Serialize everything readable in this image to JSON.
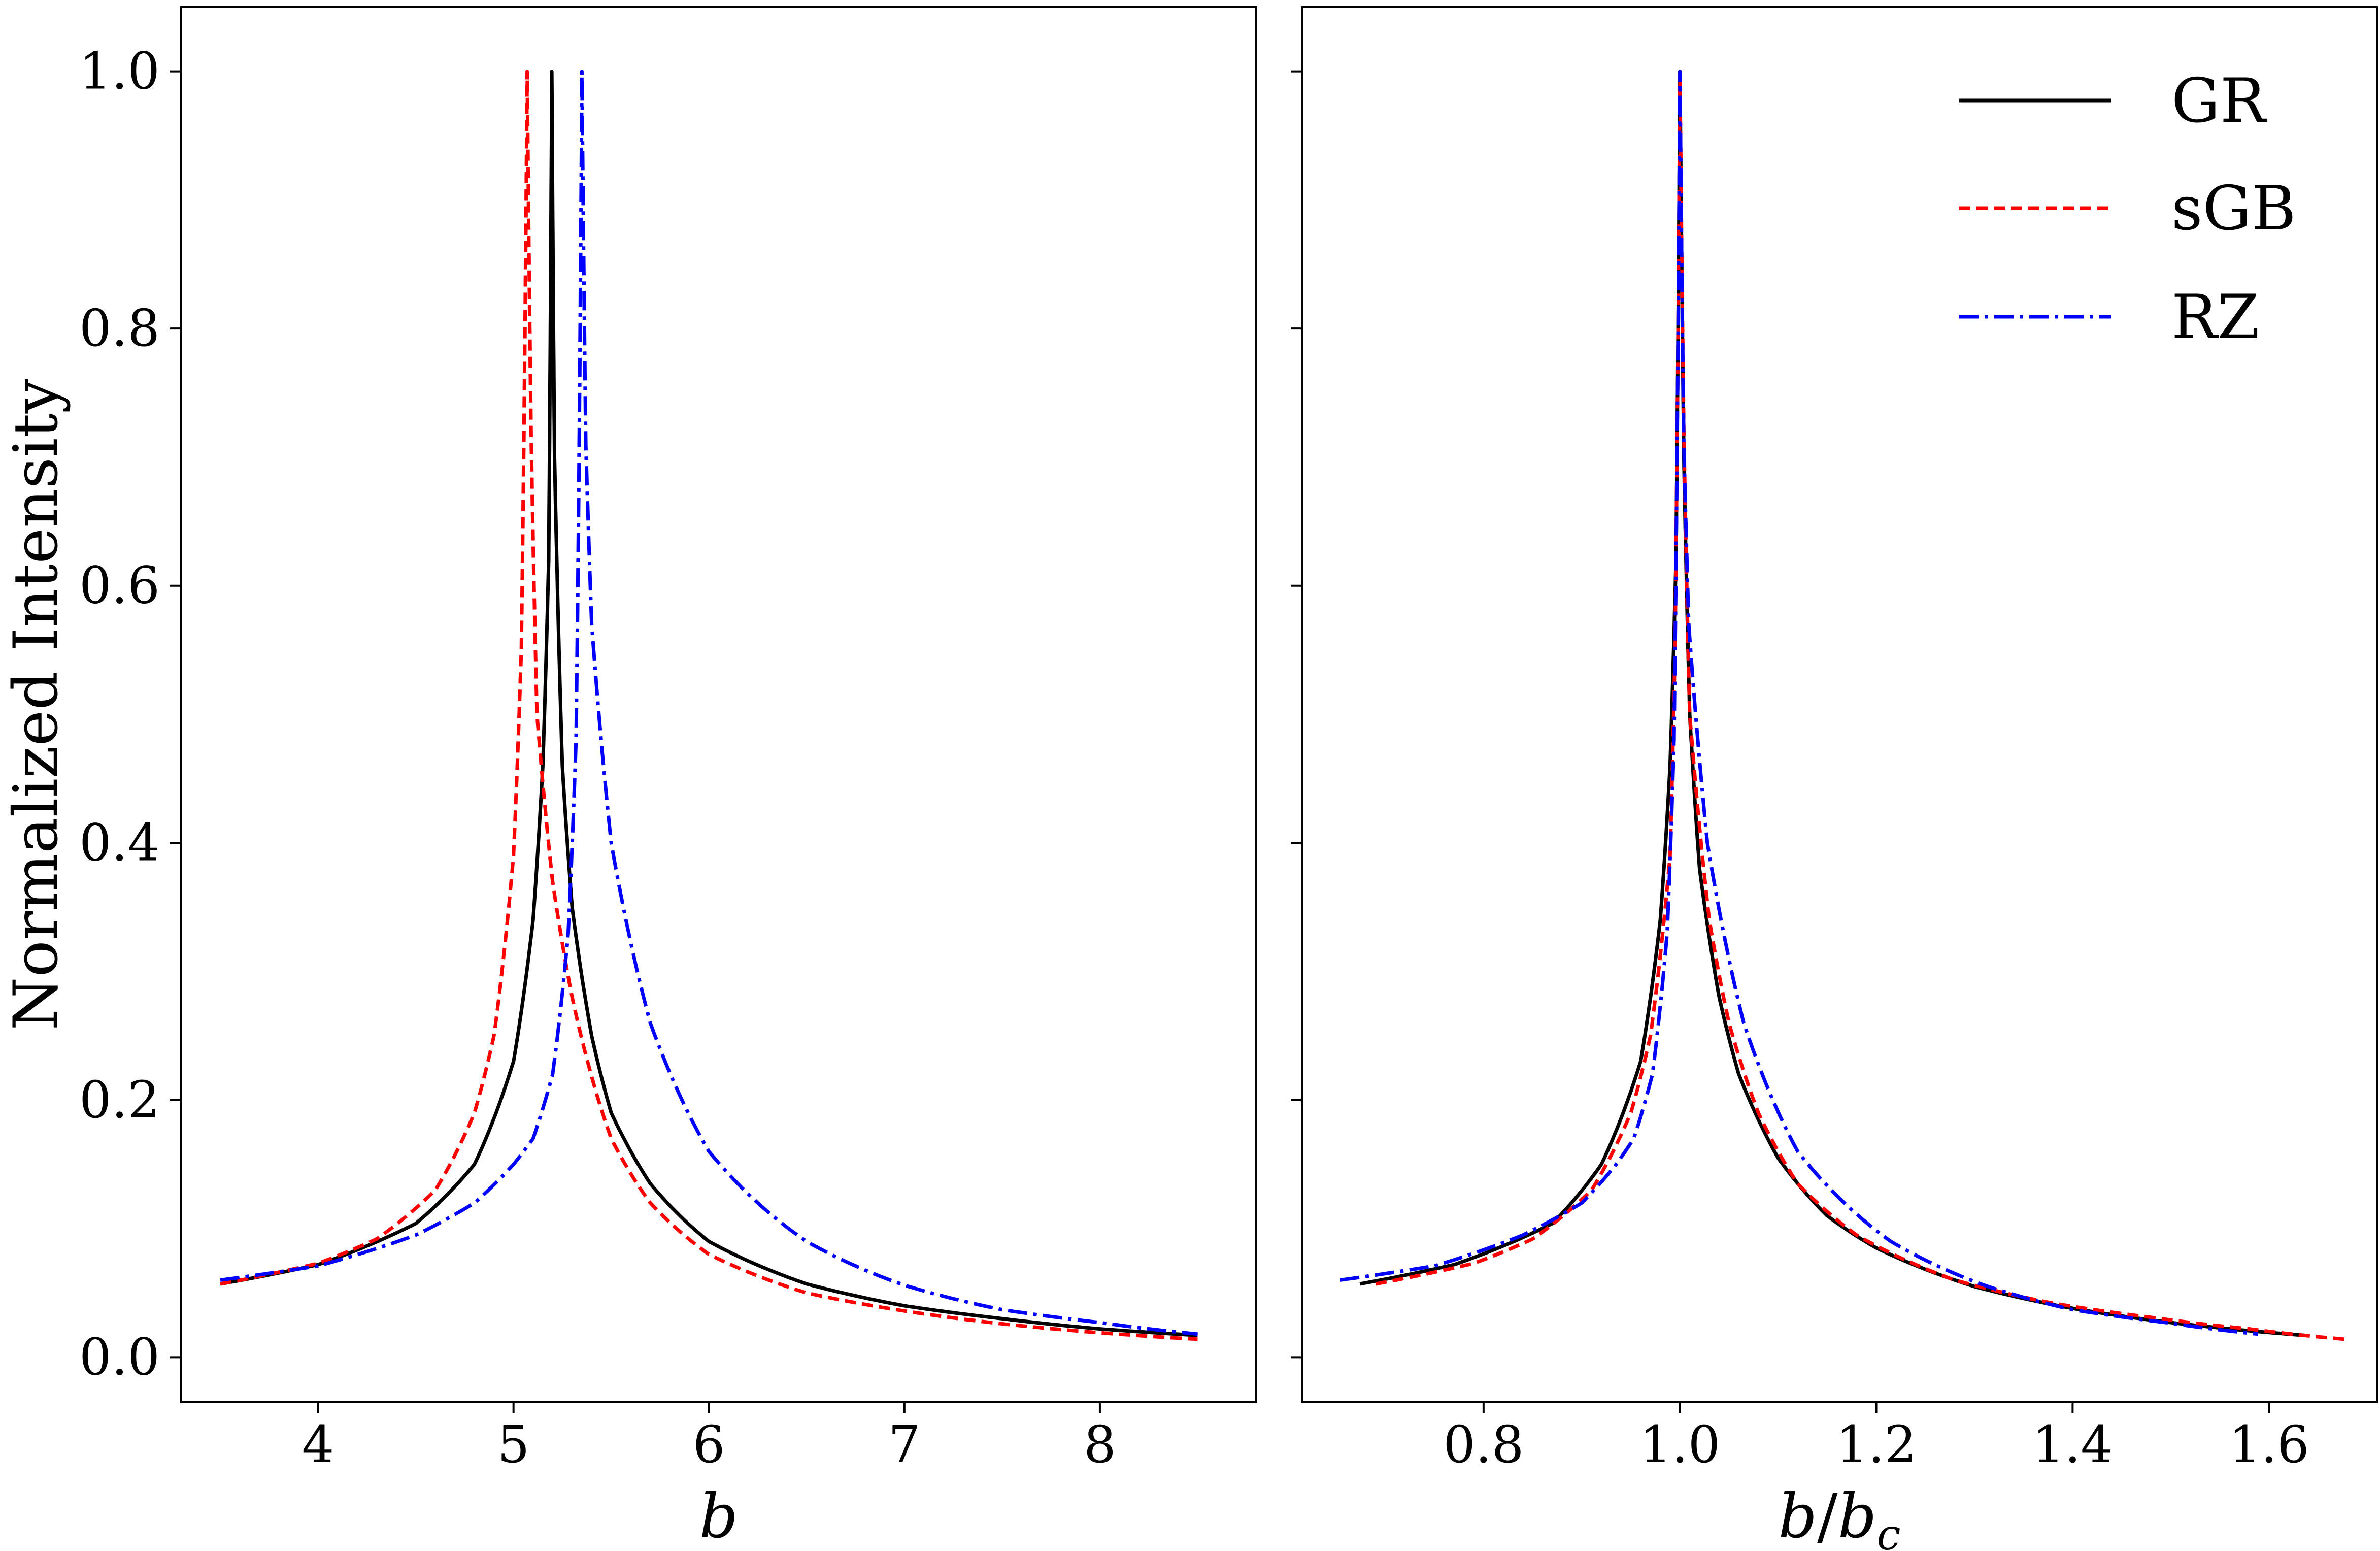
{
  "ylabel": "Normalized Intensity",
  "legend": {
    "location": "upper right",
    "entries": [
      {
        "name": "GR",
        "color": "#000000",
        "style": "solid"
      },
      {
        "name": "sGB",
        "color": "#ff0000",
        "style": "dashed"
      },
      {
        "name": "RZ",
        "color": "#0000ff",
        "style": "dashdot"
      }
    ]
  },
  "chart_data": [
    {
      "type": "line",
      "xlabel": "b",
      "ylabel": "Normalized Intensity",
      "xlim": [
        3.3,
        8.8
      ],
      "ylim": [
        -0.035,
        1.05
      ],
      "xticks": [
        "4",
        "5",
        "6",
        "7",
        "8"
      ],
      "yticks": [
        "0.0",
        "0.2",
        "0.4",
        "0.6",
        "0.8",
        "1.0"
      ],
      "grid": false,
      "series": [
        {
          "name": "GR",
          "color": "#000000",
          "style": "solid",
          "peak": 5.196,
          "x": [
            3.5,
            4.0,
            4.5,
            4.8,
            5.0,
            5.1,
            5.15,
            5.18,
            5.196,
            5.21,
            5.25,
            5.3,
            5.4,
            5.5,
            5.7,
            6.0,
            6.5,
            7.0,
            7.5,
            8.0,
            8.5
          ],
          "y": [
            0.057,
            0.072,
            0.104,
            0.15,
            0.23,
            0.34,
            0.46,
            0.62,
            1.0,
            0.7,
            0.46,
            0.35,
            0.25,
            0.19,
            0.135,
            0.09,
            0.057,
            0.04,
            0.03,
            0.022,
            0.017
          ]
        },
        {
          "name": "sGB",
          "color": "#ff0000",
          "style": "dashed",
          "peak": 5.07,
          "x": [
            3.5,
            4.0,
            4.3,
            4.6,
            4.8,
            4.9,
            5.0,
            5.04,
            5.07,
            5.09,
            5.12,
            5.2,
            5.3,
            5.5,
            5.7,
            6.0,
            6.5,
            7.0,
            7.5,
            8.0,
            8.5
          ],
          "y": [
            0.057,
            0.073,
            0.092,
            0.13,
            0.19,
            0.25,
            0.39,
            0.55,
            1.0,
            0.72,
            0.5,
            0.37,
            0.28,
            0.17,
            0.12,
            0.08,
            0.05,
            0.036,
            0.026,
            0.019,
            0.014
          ]
        },
        {
          "name": "RZ",
          "color": "#0000ff",
          "style": "dashdot",
          "peak": 5.35,
          "x": [
            3.5,
            4.0,
            4.5,
            4.8,
            5.0,
            5.1,
            5.2,
            5.28,
            5.32,
            5.35,
            5.37,
            5.4,
            5.5,
            5.7,
            6.0,
            6.5,
            7.0,
            7.5,
            8.0,
            8.5
          ],
          "y": [
            0.06,
            0.071,
            0.095,
            0.12,
            0.15,
            0.17,
            0.22,
            0.33,
            0.48,
            1.0,
            0.71,
            0.57,
            0.4,
            0.26,
            0.16,
            0.09,
            0.056,
            0.037,
            0.027,
            0.018
          ]
        }
      ]
    },
    {
      "type": "line",
      "xlabel": "b/b_c",
      "xlim": [
        0.615,
        1.71
      ],
      "ylim": [
        -0.035,
        1.05
      ],
      "xticks": [
        "0.8",
        "1.0",
        "1.2",
        "1.4",
        "1.6"
      ],
      "grid": false,
      "series": [
        {
          "name": "GR",
          "color": "#000000",
          "style": "solid",
          "x": [
            0.674,
            0.77,
            0.87,
            0.92,
            0.96,
            0.98,
            0.99,
            0.996,
            1.0,
            1.004,
            1.01,
            1.02,
            1.04,
            1.06,
            1.1,
            1.15,
            1.2,
            1.3,
            1.4,
            1.5,
            1.636
          ],
          "y": [
            0.057,
            0.072,
            0.104,
            0.15,
            0.23,
            0.34,
            0.46,
            0.62,
            1.0,
            0.7,
            0.5,
            0.38,
            0.28,
            0.22,
            0.155,
            0.11,
            0.085,
            0.055,
            0.038,
            0.027,
            0.017
          ]
        },
        {
          "name": "sGB",
          "color": "#ff0000",
          "style": "dashed",
          "x": [
            0.69,
            0.79,
            0.85,
            0.91,
            0.95,
            0.97,
            0.99,
            0.995,
            1.0,
            1.004,
            1.01,
            1.03,
            1.05,
            1.08,
            1.12,
            1.18,
            1.28,
            1.38,
            1.48,
            1.58,
            1.677
          ],
          "y": [
            0.057,
            0.073,
            0.092,
            0.13,
            0.19,
            0.25,
            0.39,
            0.55,
            1.0,
            0.72,
            0.5,
            0.34,
            0.26,
            0.19,
            0.135,
            0.095,
            0.06,
            0.042,
            0.031,
            0.022,
            0.014
          ]
        },
        {
          "name": "RZ",
          "color": "#0000ff",
          "style": "dashdot",
          "x": [
            0.654,
            0.75,
            0.84,
            0.9,
            0.935,
            0.953,
            0.972,
            0.987,
            0.994,
            1.0,
            1.004,
            1.009,
            1.028,
            1.065,
            1.12,
            1.215,
            1.31,
            1.4,
            1.495,
            1.589
          ],
          "y": [
            0.06,
            0.071,
            0.095,
            0.12,
            0.15,
            0.17,
            0.22,
            0.33,
            0.48,
            1.0,
            0.71,
            0.57,
            0.4,
            0.26,
            0.16,
            0.09,
            0.056,
            0.037,
            0.027,
            0.018
          ]
        }
      ]
    }
  ]
}
